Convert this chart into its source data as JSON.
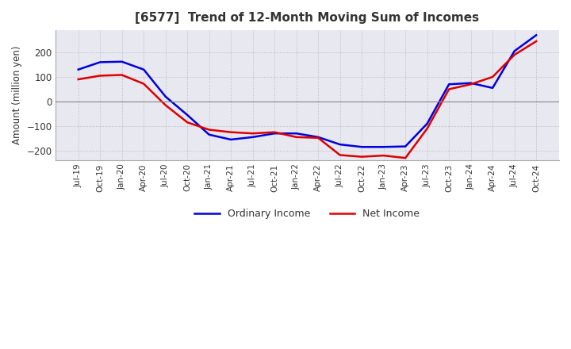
{
  "title": "[6577]  Trend of 12-Month Moving Sum of Incomes",
  "ylabel": "Amount (million yen)",
  "ylim": [
    -240,
    290
  ],
  "yticks": [
    -200,
    -100,
    0,
    100,
    200
  ],
  "background_color": "#ffffff",
  "plot_bg_color": "#e8e8f0",
  "grid_color": "#aaaaaa",
  "zero_line_color": "#888888",
  "ordinary_income_color": "#0000dd",
  "net_income_color": "#dd0000",
  "x_labels": [
    "Jul-19",
    "Oct-19",
    "Jan-20",
    "Apr-20",
    "Jul-20",
    "Oct-20",
    "Jan-21",
    "Apr-21",
    "Jul-21",
    "Oct-21",
    "Jan-22",
    "Apr-22",
    "Jul-22",
    "Oct-22",
    "Jan-23",
    "Apr-23",
    "Jul-23",
    "Oct-23",
    "Jan-24",
    "Apr-24",
    "Jul-24",
    "Oct-24"
  ],
  "ordinary_income": [
    130,
    160,
    162,
    130,
    20,
    -55,
    -135,
    -155,
    -145,
    -130,
    -130,
    -145,
    -175,
    -185,
    -185,
    -183,
    -90,
    70,
    75,
    55,
    205,
    270
  ],
  "net_income": [
    90,
    105,
    108,
    72,
    -15,
    -85,
    -115,
    -125,
    -130,
    -125,
    -145,
    -148,
    -218,
    -225,
    -220,
    -230,
    -110,
    50,
    70,
    100,
    190,
    245
  ]
}
